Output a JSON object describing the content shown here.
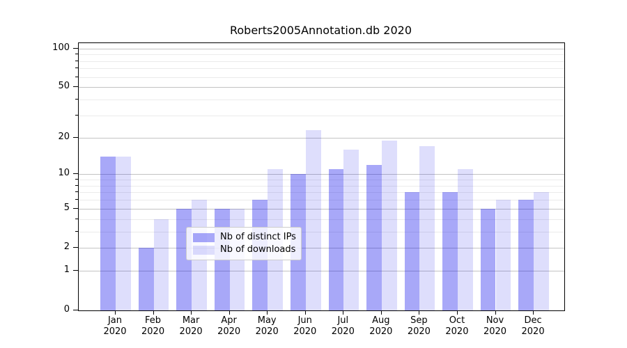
{
  "chart_data": {
    "type": "bar",
    "title": "Roberts2005Annotation.db 2020",
    "categories": [
      "Jan",
      "Feb",
      "Mar",
      "Apr",
      "May",
      "Jun",
      "Jul",
      "Aug",
      "Sep",
      "Oct",
      "Nov",
      "Dec"
    ],
    "year_label": "2020",
    "series": [
      {
        "name": "Nb of distinct IPs",
        "color": "rgba(0,0,235,0.34)",
        "values": [
          14,
          2,
          5,
          5,
          6,
          10,
          11,
          12,
          7,
          7,
          5,
          6
        ]
      },
      {
        "name": "Nb of downloads",
        "color": "rgba(0,0,235,0.13)",
        "values": [
          14,
          4,
          6,
          5,
          11,
          23,
          16,
          19,
          17,
          11,
          6,
          7
        ]
      }
    ],
    "y_axis": {
      "scale": "log1p",
      "ticks": [
        0,
        1,
        2,
        5,
        10,
        20,
        50,
        100
      ],
      "minor_ticks": [
        3,
        4,
        6,
        7,
        8,
        9,
        30,
        40,
        60,
        70,
        80,
        90
      ],
      "max": 110
    },
    "x_axis": {
      "label_format": "month-over-year"
    },
    "grid": true,
    "legend": {
      "position": "lower-center",
      "entries": [
        "Nb of distinct IPs",
        "Nb of downloads"
      ]
    }
  }
}
